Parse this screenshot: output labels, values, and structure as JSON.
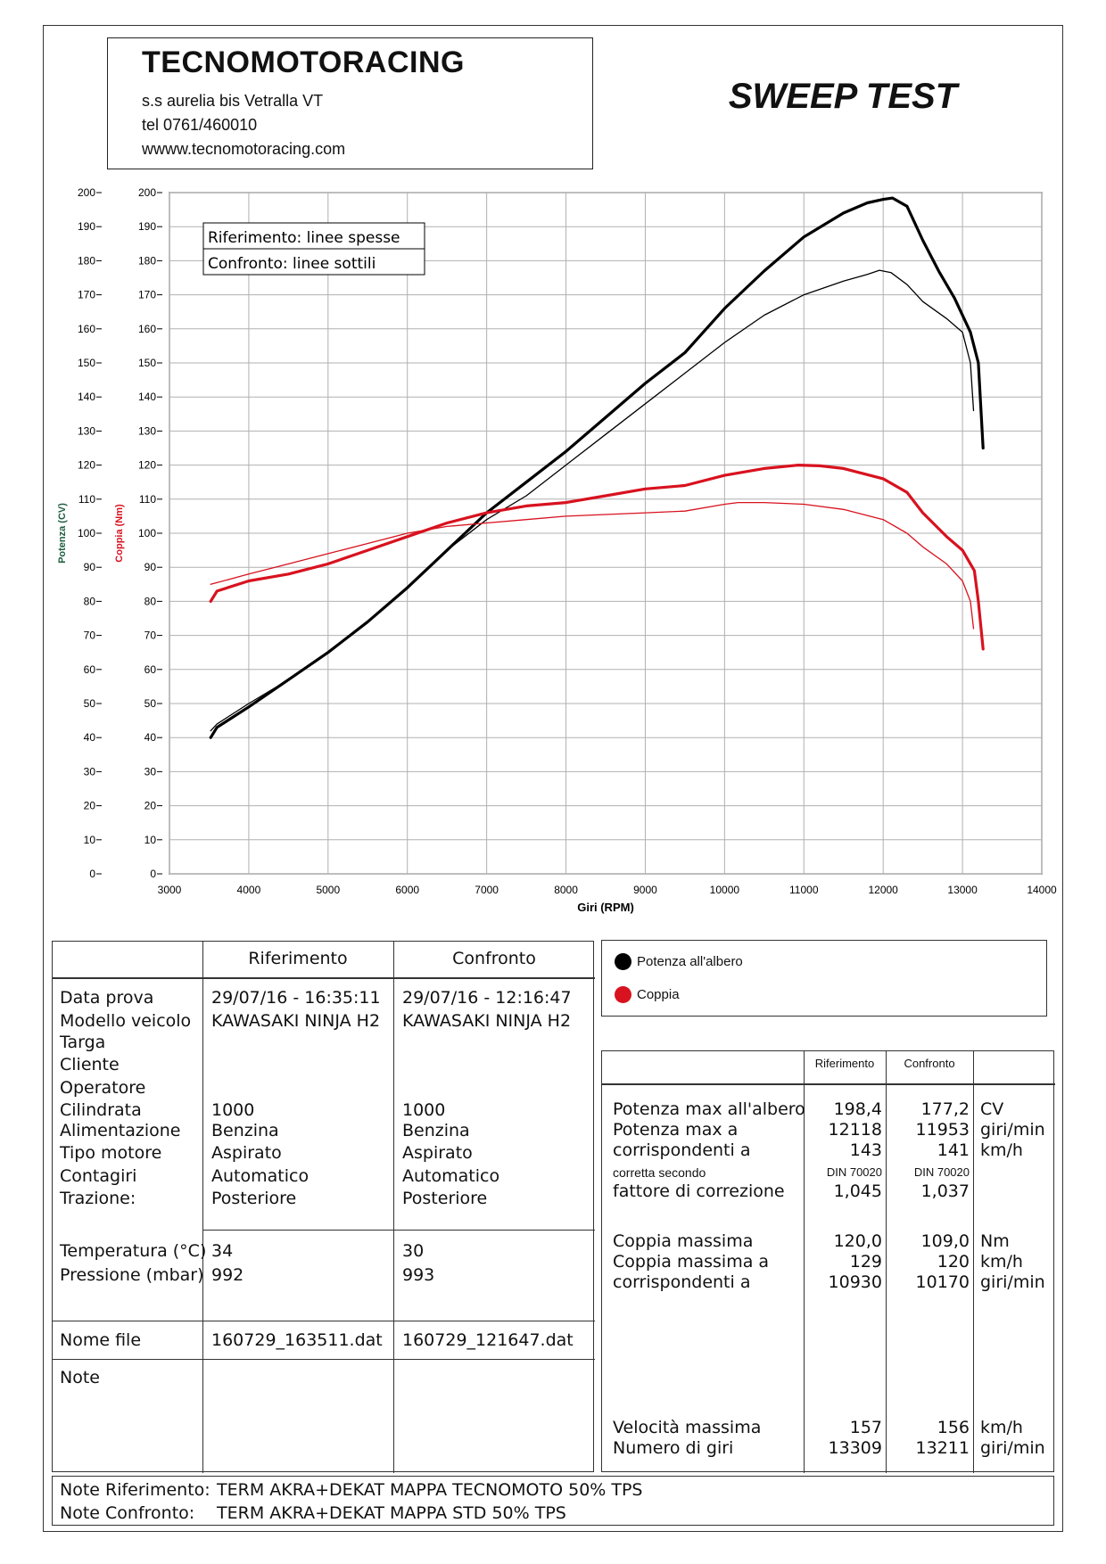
{
  "header": {
    "company_name": "TECNOMOTORACING",
    "address": "s.s aurelia bis  Vetralla  VT",
    "phone": "tel 0761/460010",
    "website": "wwww.tecnomotoracing.com",
    "test_title": "SWEEP TEST"
  },
  "chart_data": {
    "type": "line",
    "xlabel": "Giri (RPM)",
    "ylabel_left": "Potenza (CV)",
    "ylabel_right": "Coppia (Nm)",
    "xlim": [
      3000,
      14000
    ],
    "ylim": [
      0,
      200
    ],
    "x_ticks": [
      3000,
      4000,
      5000,
      6000,
      7000,
      8000,
      9000,
      10000,
      11000,
      12000,
      13000,
      14000
    ],
    "y_ticks": [
      0,
      10,
      20,
      30,
      40,
      50,
      60,
      70,
      80,
      90,
      100,
      110,
      120,
      130,
      140,
      150,
      160,
      170,
      180,
      190,
      200
    ],
    "grid": true,
    "legend_box": [
      "Riferimento: linee spesse",
      "Confronto: linee sottili"
    ],
    "series": [
      {
        "name": "Potenza all'albero",
        "run": "Riferimento",
        "color": "#000000",
        "thick": true,
        "x": [
          3520,
          3600,
          4000,
          4500,
          5000,
          5500,
          6000,
          6500,
          7000,
          7500,
          8000,
          8500,
          9000,
          9500,
          10000,
          10500,
          11000,
          11500,
          11800,
          12000,
          12118,
          12300,
          12500,
          12700,
          12900,
          13100,
          13200,
          13260
        ],
        "y": [
          40,
          43,
          49,
          57,
          65,
          74,
          84,
          95,
          106,
          115,
          124,
          134,
          144,
          153,
          166,
          177,
          187,
          194,
          197,
          198,
          198.4,
          196,
          186,
          177,
          169,
          159,
          150,
          125
        ]
      },
      {
        "name": "Potenza all'albero",
        "run": "Confronto",
        "color": "#000000",
        "thick": false,
        "x": [
          3520,
          3600,
          4000,
          4500,
          5000,
          5500,
          6000,
          6500,
          7000,
          7500,
          8000,
          8500,
          9000,
          9500,
          10000,
          10500,
          11000,
          11500,
          11800,
          11953,
          12100,
          12300,
          12500,
          12800,
          13000,
          13100,
          13140
        ],
        "y": [
          42,
          44,
          50,
          57,
          65,
          74,
          84,
          95,
          104,
          111,
          120,
          129,
          138,
          147,
          156,
          164,
          170,
          174,
          176,
          177.2,
          176.5,
          173,
          168,
          163,
          159,
          150,
          136
        ]
      },
      {
        "name": "Coppia",
        "run": "Riferimento",
        "color": "#d8121f",
        "thick": true,
        "x": [
          3520,
          3600,
          4000,
          4500,
          5000,
          5500,
          6000,
          6500,
          7000,
          7500,
          8000,
          8500,
          9000,
          9500,
          10000,
          10500,
          10930,
          11200,
          11500,
          12000,
          12300,
          12500,
          12800,
          13000,
          13150,
          13200,
          13260
        ],
        "y": [
          80,
          83,
          86,
          88,
          91,
          95,
          99,
          103,
          106,
          108,
          109,
          111,
          113,
          114,
          117,
          119,
          120,
          119.8,
          119,
          116,
          112,
          106,
          99,
          95,
          89,
          80,
          66
        ]
      },
      {
        "name": "Coppia",
        "run": "Confronto",
        "color": "#d8121f",
        "thick": false,
        "x": [
          3520,
          3600,
          4000,
          4500,
          5000,
          5500,
          6000,
          6500,
          7000,
          7500,
          8000,
          8500,
          9000,
          9500,
          10000,
          10170,
          10500,
          11000,
          11500,
          12000,
          12300,
          12500,
          12800,
          13000,
          13100,
          13140
        ],
        "y": [
          85,
          85.5,
          88,
          91,
          94,
          97,
          100,
          102,
          103,
          104,
          105,
          105.5,
          106,
          106.5,
          108.5,
          109,
          109,
          108.5,
          107,
          104,
          100,
          96,
          91,
          86,
          80,
          72
        ]
      }
    ]
  },
  "run_table": {
    "col_ref": "Riferimento",
    "col_conf": "Confronto",
    "labels": [
      "Data prova",
      "Modello veicolo",
      "Targa",
      "Cliente",
      "Operatore",
      "Cilindrata",
      "Alimentazione",
      "Tipo motore",
      "Contagiri",
      "Trazione:"
    ],
    "ref_values": [
      "29/07/16 - 16:35:11",
      "KAWASAKI NINJA H2",
      "",
      "",
      "",
      "1000",
      "Benzina",
      "Aspirato",
      "Automatico",
      "Posteriore"
    ],
    "conf_values": [
      "29/07/16 - 12:16:47",
      "KAWASAKI NINJA H2",
      "",
      "",
      "",
      "1000",
      "Benzina",
      "Aspirato",
      "Automatico",
      "Posteriore"
    ],
    "temp_label": "Temperatura (°C)",
    "press_label": "Pressione (mbar)",
    "temp_ref": "34",
    "temp_conf": "30",
    "press_ref": "992",
    "press_conf": "993",
    "file_label": "Nome file",
    "file_ref": "160729_163511.dat",
    "file_conf": "160729_121647.dat",
    "note_label": "Note"
  },
  "legend": {
    "power": "Potenza all'albero",
    "torque": "Coppia",
    "power_color": "#000000",
    "torque_color": "#d8121f"
  },
  "results": {
    "col_ref": "Riferimento",
    "col_conf": "Confronto",
    "rows": [
      {
        "label": "Potenza max all'albero",
        "ref": "198,4",
        "conf": "177,2",
        "unit": "CV"
      },
      {
        "label": "Potenza max a",
        "ref": "12118",
        "conf": "11953",
        "unit": "giri/min"
      },
      {
        "label": "corrispondenti a",
        "ref": "143",
        "conf": "141",
        "unit": "km/h"
      },
      {
        "label": "corretta secondo",
        "ref": "DIN 70020",
        "conf": "DIN 70020",
        "unit": ""
      },
      {
        "label": "fattore di correzione",
        "ref": "1,045",
        "conf": "1,037",
        "unit": ""
      },
      {
        "label": "Coppia massima",
        "ref": "120,0",
        "conf": "109,0",
        "unit": "Nm"
      },
      {
        "label": "Coppia massima a",
        "ref": "129",
        "conf": "120",
        "unit": "km/h"
      },
      {
        "label": "corrispondenti a",
        "ref": "10930",
        "conf": "10170",
        "unit": "giri/min"
      },
      {
        "label": "Velocità massima",
        "ref": "157",
        "conf": "156",
        "unit": "km/h"
      },
      {
        "label": "Numero di giri",
        "ref": "13309",
        "conf": "13211",
        "unit": "giri/min"
      }
    ]
  },
  "notes": {
    "ref_label": "Note Riferimento:",
    "ref_text": "TERM AKRA+DEKAT MAPPA TECNOMOTO 50% TPS",
    "conf_label": "Note Confronto:",
    "conf_text": "TERM AKRA+DEKAT MAPPA STD 50% TPS"
  }
}
